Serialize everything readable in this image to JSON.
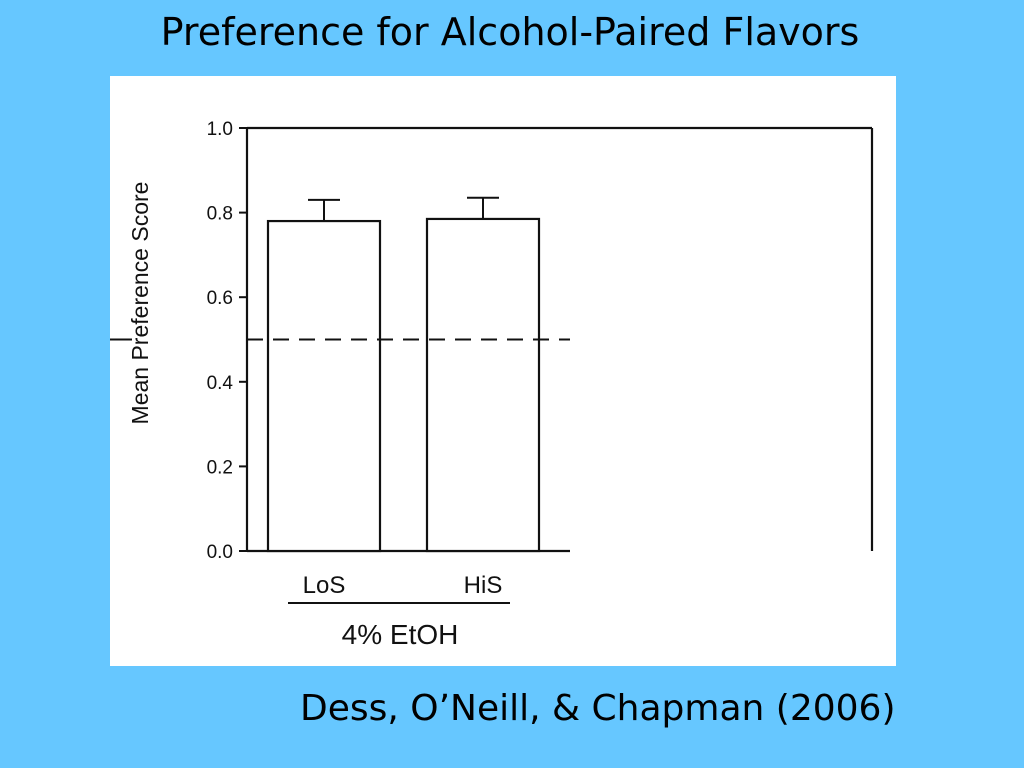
{
  "slide": {
    "title": "Preference for Alcohol-Paired Flavors",
    "citation": "Dess, O’Neill, & Chapman (2006)"
  },
  "chart_data": {
    "type": "bar",
    "title": "",
    "ylabel": "Mean Preference Score",
    "xlabel": "",
    "group_label": "4% EtOH",
    "categories": [
      "LoS",
      "HiS"
    ],
    "values": [
      0.78,
      0.785
    ],
    "error_upper": [
      0.83,
      0.835
    ],
    "ylim": [
      0.0,
      1.0
    ],
    "yticks": [
      "0.0",
      "0.2",
      "0.4",
      "0.6",
      "0.8",
      "1.0"
    ],
    "reference_line": {
      "y": 0.5,
      "style": "dashed"
    },
    "grid": false,
    "legend": "none",
    "bar_fill": "#ffffff",
    "ink_color": "#111111"
  }
}
